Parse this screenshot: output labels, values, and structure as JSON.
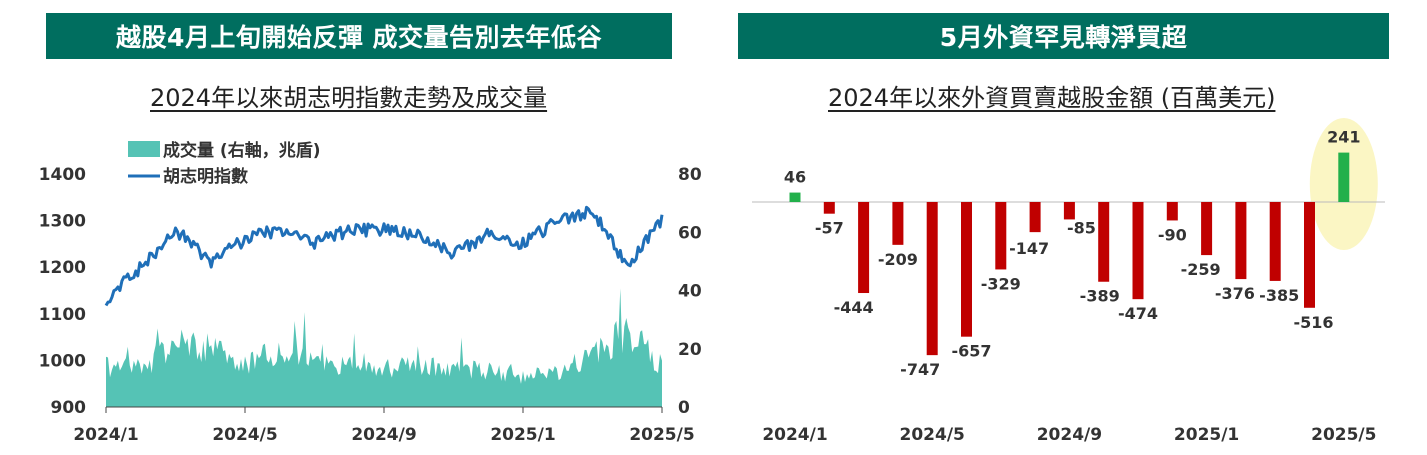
{
  "left_panel": {
    "banner": "越股4月上旬開始反彈  成交量告別去年低谷",
    "subtitle": "2024年以來胡志明指數走勢及成交量"
  },
  "right_panel": {
    "banner": "5月外資罕見轉淨買超",
    "subtitle": "2024年以來外資買賣越股金額 (百萬美元)"
  },
  "colors": {
    "index_line": "#1f6fb8",
    "volume_area": "#55c3b5",
    "bar_negative": "#c00000",
    "bar_positive": "#22b04b",
    "highlight": "#fbf6c4",
    "banner_bg": "#006e5f"
  },
  "chart_data": [
    {
      "type": "line",
      "series": [
        {
          "name": "成交量 (右軸，兆盾)",
          "kind": "area",
          "axis": "right",
          "x": [
            "2024/1",
            "2024/2",
            "2024/3",
            "2024/4",
            "2024/5",
            "2024/6",
            "2024/7",
            "2024/8",
            "2024/9",
            "2024/10",
            "2024/11",
            "2024/12",
            "2025/1",
            "2025/2",
            "2025/3",
            "2025/4",
            "2025/5"
          ],
          "values": [
            14,
            13,
            22,
            20,
            15,
            20,
            16,
            15,
            13,
            14,
            13,
            13,
            10,
            12,
            17,
            27,
            14
          ]
        },
        {
          "name": "胡志明指數",
          "kind": "line",
          "axis": "left",
          "x": [
            "2024/1",
            "2024/2",
            "2024/3",
            "2024/4",
            "2024/5",
            "2024/6",
            "2024/7",
            "2024/8",
            "2024/9",
            "2024/10",
            "2024/11",
            "2024/12",
            "2025/1",
            "2025/2",
            "2025/3",
            "2025/4",
            "2025/5"
          ],
          "values": [
            1130,
            1200,
            1280,
            1210,
            1260,
            1280,
            1250,
            1280,
            1280,
            1270,
            1230,
            1270,
            1250,
            1300,
            1320,
            1200,
            1300
          ]
        }
      ],
      "x_ticks": [
        "2024/1",
        "2024/5",
        "2024/9",
        "2025/1",
        "2025/5"
      ],
      "y_left_ticks": [
        "1400",
        "1300",
        "1200",
        "1100",
        "1000",
        "900"
      ],
      "y_right_ticks": [
        "80",
        "60",
        "40",
        "20",
        "0"
      ],
      "ylim_left": [
        900,
        1400
      ],
      "ylim_right": [
        0,
        80
      ],
      "legend": [
        "成交量 (右軸，兆盾)",
        "胡志明指數"
      ],
      "legend_position": "top-left"
    },
    {
      "type": "bar",
      "categories": [
        "2024/1",
        "2024/2",
        "2024/3",
        "2024/4",
        "2024/5",
        "2024/6",
        "2024/7",
        "2024/8",
        "2024/9",
        "2024/10",
        "2024/11",
        "2024/12",
        "2025/1",
        "2025/2",
        "2025/3",
        "2025/4",
        "2025/5"
      ],
      "values": [
        46,
        -57,
        -444,
        -209,
        -747,
        -657,
        -329,
        -147,
        -85,
        -389,
        -474,
        -90,
        -259,
        -376,
        -385,
        -516,
        241
      ],
      "labels": [
        "46",
        "-57",
        "-444",
        "-209",
        "-747",
        "-657",
        "-329",
        "-147",
        "-85",
        "-389",
        "-474",
        "-90",
        "-259",
        "-376",
        "-385",
        "-516",
        "241"
      ],
      "x_ticks": [
        "2024/1",
        "2024/5",
        "2024/9",
        "2025/1",
        "2025/5"
      ],
      "highlight_category": "2025/5",
      "ylim": [
        -800,
        280
      ]
    }
  ]
}
